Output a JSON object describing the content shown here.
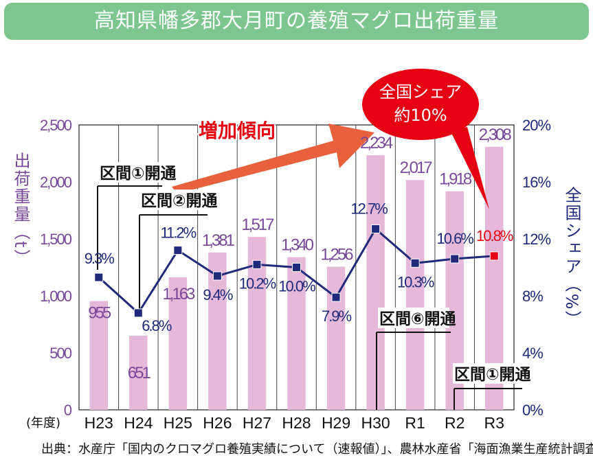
{
  "title": "高知県幡多郡大月町の養殖マグロ出荷重量",
  "chart_data": {
    "type": "bar",
    "categories": [
      "H23",
      "H24",
      "H25",
      "H26",
      "H27",
      "H28",
      "H29",
      "H30",
      "R1",
      "R2",
      "R3"
    ],
    "series": [
      {
        "values": [
          955,
          651,
          1163,
          1381,
          1517,
          1340,
          1256,
          2234,
          2017,
          1918,
          2308
        ],
        "labels": [
          "955",
          "651",
          "1,163",
          "1,381",
          "1,517",
          "1,340",
          "1,256",
          "2,234",
          "2,017",
          "1,918",
          "2,308"
        ]
      },
      {
        "values": [
          9.3,
          6.8,
          11.2,
          9.4,
          10.2,
          10.0,
          7.9,
          12.7,
          10.3,
          10.6,
          10.8
        ],
        "labels": [
          "9.3%",
          "6.8%",
          "11.2%",
          "9.4%",
          "10.2%",
          "10.0%",
          "7.9%",
          "12.7%",
          "10.3%",
          "10.6%",
          "10.8%"
        ]
      }
    ],
    "ylabel": "出荷重量（t）",
    "y2label": "全国シェア（%）",
    "xunit": "(年度)",
    "ylim": [
      0,
      2500
    ],
    "y2lim": [
      0,
      20
    ],
    "yticks": [
      "0",
      "500",
      "1,000",
      "1,500",
      "2,000",
      "2,500"
    ],
    "y2ticks": [
      "0%",
      "4%",
      "8%",
      "12%",
      "16%",
      "20%"
    ],
    "colors": {
      "bar": "#e6b8d9",
      "line": "#1f2a7a",
      "left_axis": "#7a4a9a",
      "right_axis": "#1f2a7a",
      "highlight": "#e60012"
    },
    "annotations": {
      "trend": "増加傾向",
      "share_callout_line1": "全国シェア",
      "share_callout_line2": "約10%",
      "section1": "区間①開通",
      "section2": "区間②開通",
      "section6": "区間⑥開通",
      "section1b": "区間①開通"
    }
  },
  "source": "出典：水産庁「国内のクロマグロ養殖実績について（速報値）」、農林水産省「海面漁業生産統計調査」"
}
